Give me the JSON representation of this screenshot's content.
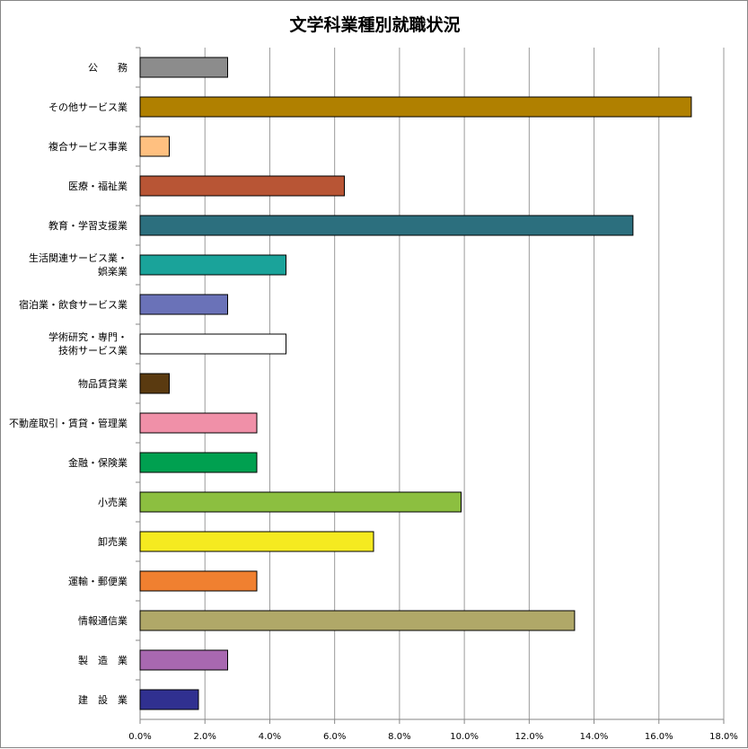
{
  "chart_data": {
    "type": "bar",
    "orientation": "horizontal",
    "title": "文学科業種別就職状況",
    "xlabel": "",
    "ylabel": "",
    "xlim": [
      0,
      18
    ],
    "x_ticks": [
      "0.0%",
      "2.0%",
      "4.0%",
      "6.0%",
      "8.0%",
      "10.0%",
      "12.0%",
      "14.0%",
      "16.0%",
      "18.0%"
    ],
    "grid": "vertical",
    "legend": "none",
    "bars": [
      {
        "label": "公　　務",
        "value": 2.7,
        "color": "#8c8c8c"
      },
      {
        "label": "その他サービス業",
        "value": 17.0,
        "color": "#b08000"
      },
      {
        "label": "複合サービス事業",
        "value": 0.9,
        "color": "#ffc080"
      },
      {
        "label": "医療・福祉業",
        "value": 6.3,
        "color": "#b85535"
      },
      {
        "label": "教育・学習支援業",
        "value": 15.2,
        "color": "#2c6f7e"
      },
      {
        "label": "生活関連サービス業・\n娯楽業",
        "value": 4.5,
        "color": "#1aa39a"
      },
      {
        "label": "宿泊業・飲食サービス業",
        "value": 2.7,
        "color": "#6a72b8"
      },
      {
        "label": "学術研究・専門・\n技術サービス業",
        "value": 4.5,
        "color": "#ffffff"
      },
      {
        "label": "物品賃貸業",
        "value": 0.9,
        "color": "#5a3a10"
      },
      {
        "label": "不動産取引・賃貸・管理業",
        "value": 3.6,
        "color": "#f090a8"
      },
      {
        "label": "金融・保険業",
        "value": 3.6,
        "color": "#00a050"
      },
      {
        "label": "小売業",
        "value": 9.9,
        "color": "#8cbf40"
      },
      {
        "label": "卸売業",
        "value": 7.2,
        "color": "#f5ea20"
      },
      {
        "label": "運輸・郵便業",
        "value": 3.6,
        "color": "#f08030"
      },
      {
        "label": "情報通信業",
        "value": 13.4,
        "color": "#b0a868"
      },
      {
        "label": "製　造　業",
        "value": 2.7,
        "color": "#a868b0"
      },
      {
        "label": "建　設　業",
        "value": 1.8,
        "color": "#303090"
      }
    ]
  }
}
